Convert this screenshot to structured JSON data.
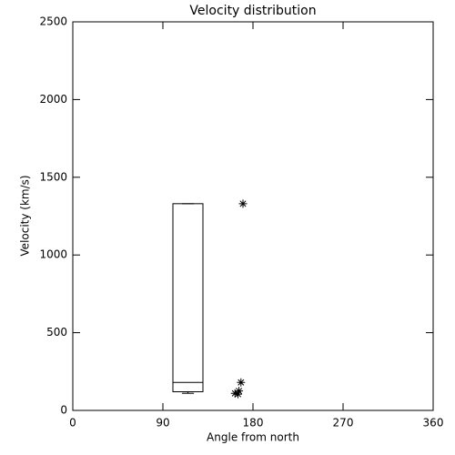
{
  "chart_data": {
    "type": "box",
    "title": "Velocity distribution",
    "x_label": "Angle from north",
    "y_label": "Velocity (km/s)",
    "xlim": [
      0,
      360
    ],
    "ylim": [
      0,
      2500
    ],
    "xticks": [
      0,
      90,
      180,
      270,
      360
    ],
    "yticks": [
      0,
      500,
      1000,
      1500,
      2000,
      2500
    ],
    "box": {
      "x": [
        100,
        130
      ],
      "whisker_low": 110,
      "q1": 120,
      "median": 180,
      "q3": 1330,
      "whisker_high": 1330
    },
    "points": {
      "x": [
        170,
        168,
        166,
        162,
        165
      ],
      "values": [
        1330,
        180,
        125,
        110,
        105
      ]
    },
    "color": "#000000"
  }
}
